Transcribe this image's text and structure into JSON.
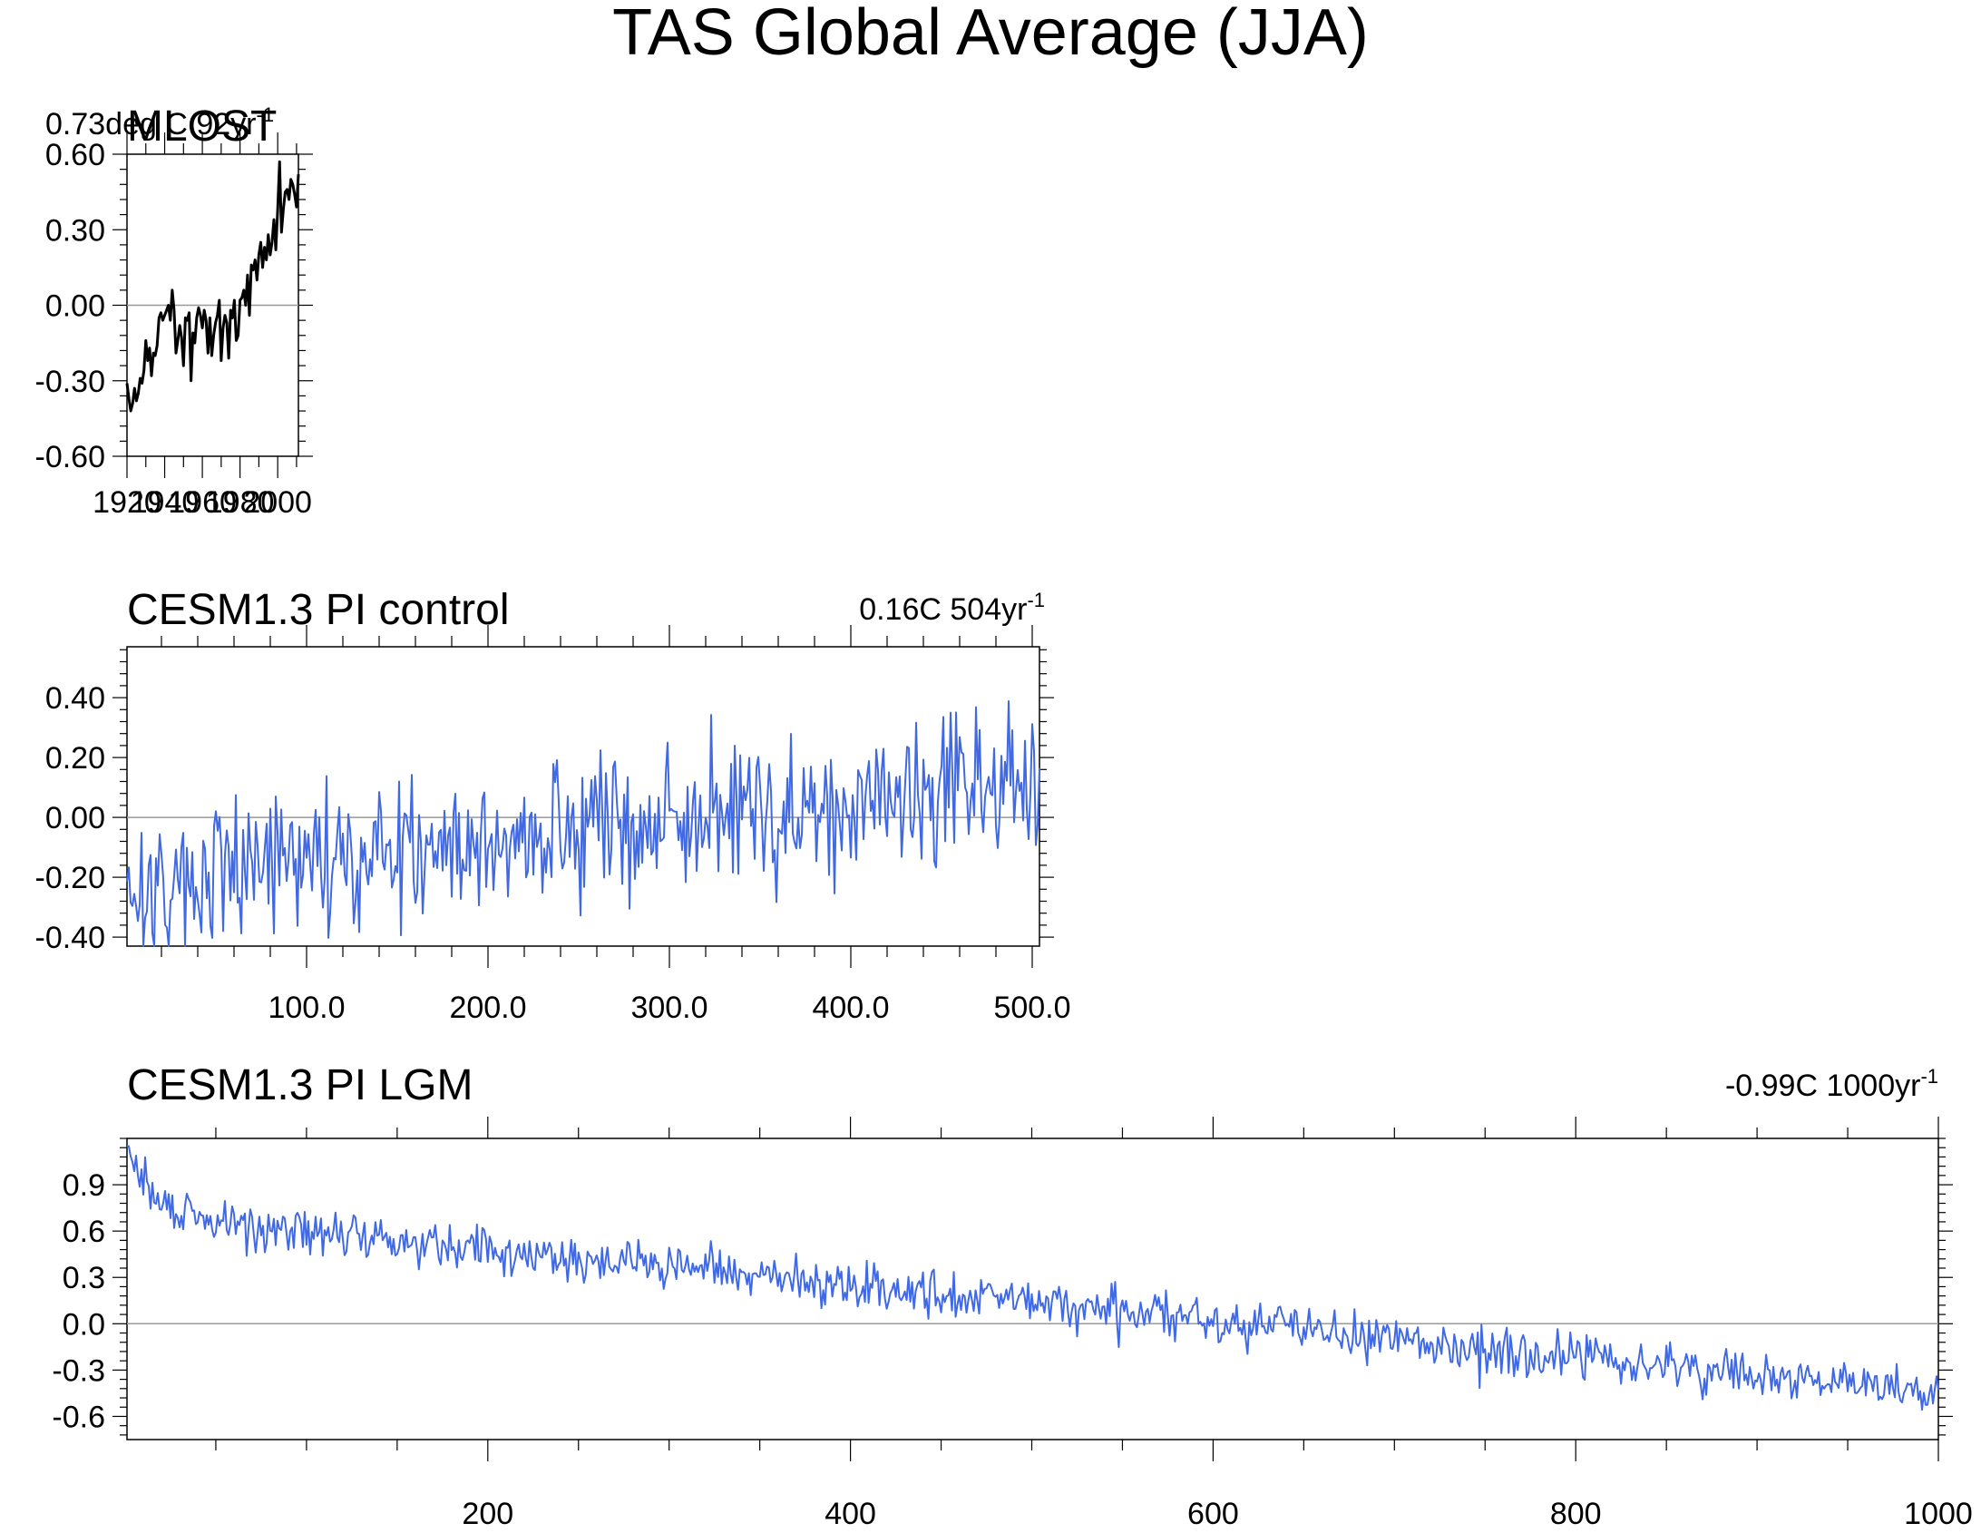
{
  "title": "TAS Global Average (JJA)",
  "colors": {
    "axis": "#000000",
    "zero_line": "#999999",
    "obs_series": "#000000",
    "model_series": "#4169e1"
  },
  "chart_data": [
    {
      "type": "line",
      "title": "MLOST",
      "trend_label": "0.73deg C 92yr",
      "trend_exp": "-1",
      "xlabel": "",
      "ylabel": "",
      "xlim": [
        1920,
        2011
      ],
      "ylim": [
        -0.6,
        0.6
      ],
      "xticks": [
        1920,
        1940,
        1960,
        1980,
        2000
      ],
      "xtick_labels": [
        "1920",
        "1940",
        "1960",
        "1980",
        "2000"
      ],
      "yticks": [
        -0.6,
        -0.3,
        0.0,
        0.3,
        0.6
      ],
      "ytick_labels": [
        "-0.60",
        "-0.30",
        "0.00",
        "0.30",
        "0.60"
      ],
      "series": [
        {
          "name": "MLOST",
          "color": "#000000",
          "x_start": 1920,
          "values": [
            -0.31,
            -0.37,
            -0.42,
            -0.39,
            -0.33,
            -0.38,
            -0.35,
            -0.29,
            -0.31,
            -0.26,
            -0.14,
            -0.22,
            -0.17,
            -0.28,
            -0.19,
            -0.2,
            -0.16,
            -0.05,
            -0.03,
            -0.06,
            -0.04,
            -0.02,
            0.0,
            -0.06,
            0.06,
            -0.02,
            -0.19,
            -0.14,
            -0.08,
            -0.13,
            -0.24,
            -0.05,
            -0.06,
            -0.03,
            -0.3,
            -0.11,
            -0.15,
            -0.05,
            -0.01,
            -0.04,
            -0.09,
            -0.02,
            -0.06,
            -0.19,
            -0.05,
            -0.2,
            -0.12,
            -0.07,
            -0.04,
            0.02,
            -0.22,
            -0.09,
            -0.04,
            -0.07,
            -0.21,
            -0.02,
            -0.05,
            0.02,
            -0.14,
            -0.12,
            0.02,
            0.03,
            0.06,
            0.0,
            0.12,
            -0.04,
            0.16,
            0.14,
            0.18,
            0.1,
            0.2,
            0.25,
            0.15,
            0.23,
            0.18,
            0.28,
            0.2,
            0.25,
            0.34,
            0.22,
            0.38,
            0.57,
            0.29,
            0.38,
            0.45,
            0.46,
            0.42,
            0.5,
            0.48,
            0.44,
            0.39,
            0.52
          ]
        }
      ]
    },
    {
      "type": "line",
      "title": "CESM1.3 PI control",
      "trend_label": "0.16C 504yr",
      "trend_exp": "-1",
      "xlabel": "",
      "ylabel": "",
      "xlim": [
        1,
        504
      ],
      "ylim": [
        -0.43,
        0.57
      ],
      "xticks": [
        100,
        200,
        300,
        400,
        500
      ],
      "xtick_labels": [
        "100.0",
        "200.0",
        "300.0",
        "400.0",
        "500.0"
      ],
      "yticks": [
        -0.4,
        -0.2,
        0.0,
        0.2,
        0.4
      ],
      "ytick_labels": [
        "-0.40",
        "-0.20",
        "0.00",
        "0.20",
        "0.40"
      ],
      "series": [
        {
          "name": "PI control",
          "color": "#4169e1",
          "x_start": 1,
          "generator": "noise",
          "n": 504,
          "seed": 17,
          "start": -0.22,
          "end": 0.12,
          "amp": 0.15,
          "ymin": -0.43,
          "ymax": 0.41
        }
      ]
    },
    {
      "type": "line",
      "title": "CESM1.3 PI LGM",
      "trend_label": "-0.99C 1000yr",
      "trend_exp": "-1",
      "xlabel": "",
      "ylabel": "",
      "xlim": [
        1,
        1000
      ],
      "ylim": [
        -0.75,
        1.2
      ],
      "xticks": [
        200,
        400,
        600,
        800,
        1000
      ],
      "xtick_labels": [
        "200",
        "400",
        "600",
        "800",
        "1000"
      ],
      "yticks": [
        -0.6,
        -0.3,
        0.0,
        0.3,
        0.6,
        0.9
      ],
      "ytick_labels": [
        "-0.6",
        "-0.3",
        "0.0",
        "0.3",
        "0.6",
        "0.9"
      ],
      "series": [
        {
          "name": "PI LGM",
          "color": "#4169e1",
          "x_start": 1,
          "generator": "decay",
          "n": 1000,
          "seed": 29,
          "start": 1.15,
          "mid": 0.62,
          "end": -0.45,
          "amp": 0.09,
          "ymin": -0.72,
          "ymax": 1.15
        }
      ]
    }
  ]
}
